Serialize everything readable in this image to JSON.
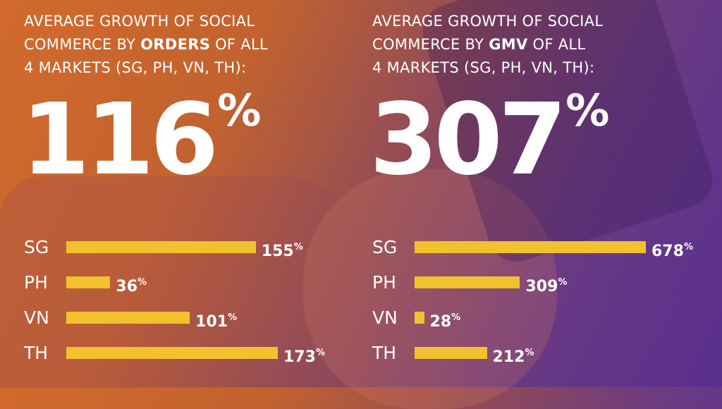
{
  "chart_data": [
    {
      "type": "bar",
      "orientation": "horizontal",
      "title_parts": [
        "AVERAGE GROWTH OF SOCIAL",
        "COMMERCE BY ",
        "ORDERS",
        " OF ALL",
        "4 MARKETS (SG, PH, VN, TH):"
      ],
      "headline_value": "116",
      "headline_unit": "%",
      "categories": [
        "SG",
        "PH",
        "VN",
        "TH"
      ],
      "values": [
        155,
        36,
        101,
        173
      ],
      "value_suffix": "%",
      "bar_color": "#f2c12e",
      "xlim": [
        0,
        173
      ]
    },
    {
      "type": "bar",
      "orientation": "horizontal",
      "title_parts": [
        "AVERAGE GROWTH OF SOCIAL",
        "COMMERCE BY ",
        "GMV",
        " OF ALL",
        "4 MARKETS (SG, PH, VN, TH):"
      ],
      "headline_value": "307",
      "headline_unit": "%",
      "categories": [
        "SG",
        "PH",
        "VN",
        "TH"
      ],
      "values": [
        678,
        309,
        28,
        212
      ],
      "value_suffix": "%",
      "bar_color": "#f2c12e",
      "xlim": [
        0,
        678
      ]
    }
  ]
}
